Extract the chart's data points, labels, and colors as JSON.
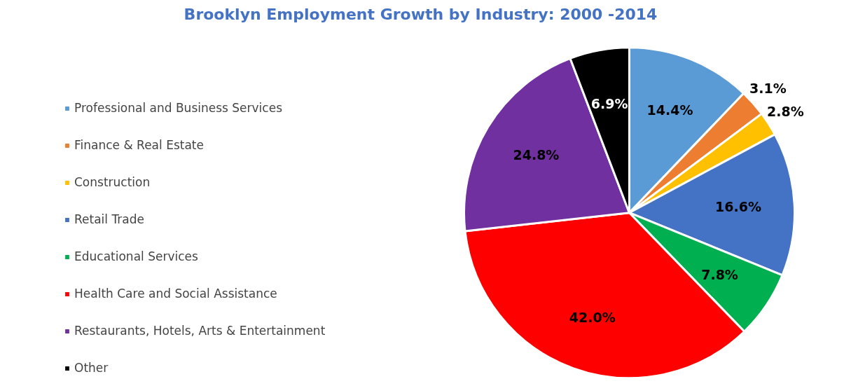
{
  "chart_data": {
    "type": "pie",
    "title": "Brooklyn Employment Growth by Industry: 2000 -2014",
    "categories": [
      "Professional and Business Services",
      "Finance & Real Estate",
      "Construction",
      "Retail Trade",
      "Educational Services",
      "Health Care and Social Assistance",
      "Restaurants, Hotels, Arts & Entertainment",
      "Other"
    ],
    "values": [
      14.4,
      3.1,
      2.8,
      16.6,
      7.8,
      42.0,
      24.8,
      6.9
    ],
    "value_labels": [
      "14.4%",
      "3.1%",
      "2.8%",
      "16.6%",
      "7.8%",
      "42.0%",
      "24.8%",
      "6.9%"
    ],
    "colors": [
      "#5b9bd5",
      "#ed7d31",
      "#ffc000",
      "#4472c4",
      "#00b050",
      "#ff0000",
      "#7030a0",
      "#000000"
    ],
    "legend": "left"
  }
}
